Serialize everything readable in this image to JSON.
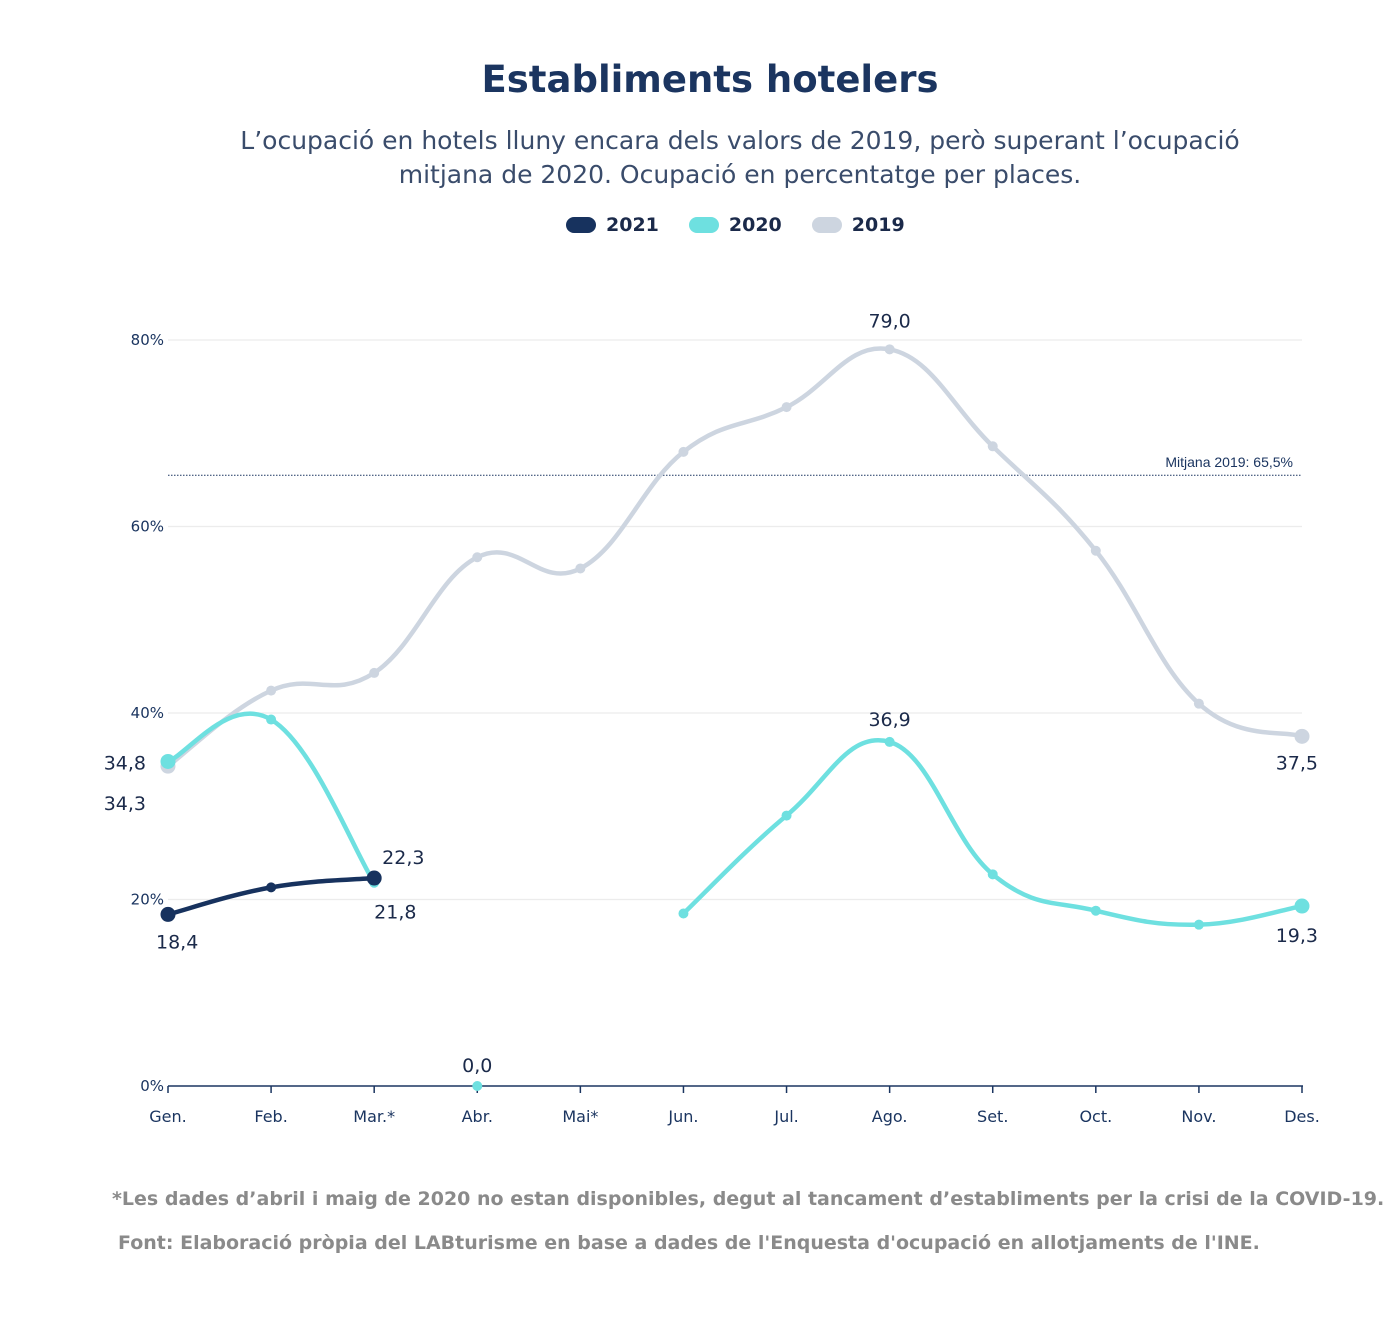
{
  "title": "Establiments hotelers",
  "subtitle": "L’ocupació en hotels lluny encara dels valors de 2019, però superant l’ocupació mitjana de 2020. Ocupació en percentatge per places.",
  "legend": [
    {
      "name": "2021",
      "color": "#17325e"
    },
    {
      "name": "2020",
      "color": "#6ee0e0"
    },
    {
      "name": "2019",
      "color": "#cdd5e0"
    }
  ],
  "reference_line": {
    "label": "Mitjana 2019: 65,5%",
    "value": 65.5
  },
  "footnote": "*Les dades d’abril i maig de 2020 no estan disponibles, degut al tancament d’establiments per la crisi de la COVID-19.",
  "source": "Font: Elaboració pròpia del LABturisme en base a dades de l'Enquesta d'ocupació en allotjaments de l'INE.",
  "chart_data": {
    "type": "line",
    "categories": [
      "Gen.",
      "Feb.",
      "Mar.*",
      "Abr.",
      "Mai*",
      "Jun.",
      "Jul.",
      "Ago.",
      "Set.",
      "Oct.",
      "Nov.",
      "Des."
    ],
    "ylim": [
      0,
      80
    ],
    "yticks": [
      0,
      20,
      40,
      60,
      80
    ],
    "ytick_labels": [
      "0%",
      "20%",
      "40%",
      "60%",
      "80%"
    ],
    "grid": true,
    "legend_position": "top-center",
    "series": [
      {
        "name": "2019",
        "color": "#cdd5e0",
        "values": [
          34.3,
          42.4,
          44.3,
          56.7,
          55.5,
          68.0,
          72.8,
          79.0,
          68.6,
          57.4,
          41.0,
          37.5
        ]
      },
      {
        "name": "2020",
        "color": "#6ee0e0",
        "values": [
          34.8,
          39.3,
          21.8,
          0.0,
          null,
          18.5,
          29.0,
          36.9,
          22.7,
          18.8,
          17.3,
          19.3
        ]
      },
      {
        "name": "2021",
        "color": "#17325e",
        "values": [
          18.4,
          21.3,
          22.3,
          null,
          null,
          null,
          null,
          null,
          null,
          null,
          null,
          null
        ]
      }
    ],
    "data_labels": [
      {
        "series": "2019",
        "index": 7,
        "text": "79,0"
      },
      {
        "series": "2019",
        "index": 11,
        "text": "37,5"
      },
      {
        "series": "2019",
        "index": 0,
        "text": "34,3"
      },
      {
        "series": "2020",
        "index": 0,
        "text": "34,8"
      },
      {
        "series": "2020",
        "index": 2,
        "text": "21,8"
      },
      {
        "series": "2020",
        "index": 3,
        "text": "0,0"
      },
      {
        "series": "2020",
        "index": 7,
        "text": "36,9"
      },
      {
        "series": "2020",
        "index": 11,
        "text": "19,3"
      },
      {
        "series": "2021",
        "index": 0,
        "text": "18,4"
      },
      {
        "series": "2021",
        "index": 2,
        "text": "22,3"
      }
    ]
  }
}
